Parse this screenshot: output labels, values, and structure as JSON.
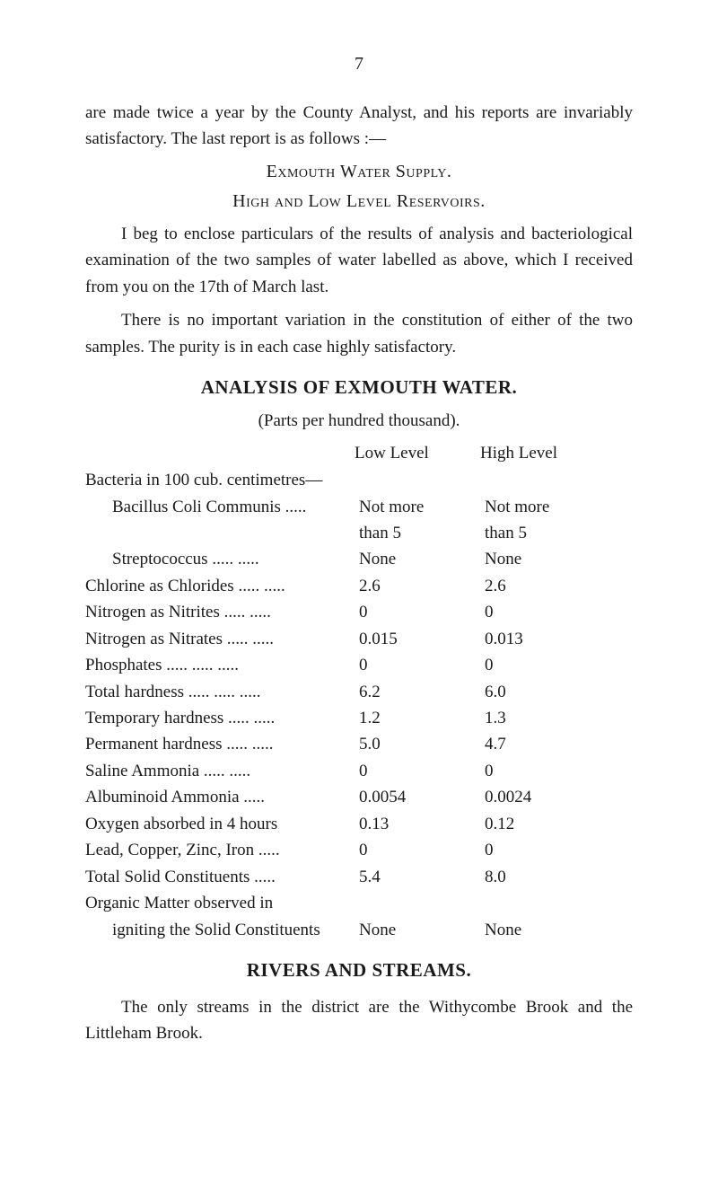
{
  "pageNumber": "7",
  "para1": "are made twice a year by the County Analyst, and his reports are invariably satisfactory. The last report is as follows :—",
  "line_exmouth": "Exmouth Water Supply.",
  "line_high_low": "High and Low Level Reservoirs.",
  "para2": "I beg to enclose particulars of the results of analysis and bacteriological examination of the two samples of water labelled as above, which I received from you on the 17th of March last.",
  "para3": "There is no important variation in the constitution of either of the two samples. The purity is in each case highly satisfactory.",
  "heading_analysis": "ANALYSIS OF EXMOUTH WATER.",
  "sub_parts": "(Parts per hundred thousand).",
  "col_low": "Low Level",
  "col_high": "High Level",
  "bacteria_line": "Bacteria in 100 cub. centimetres—",
  "rows": [
    {
      "label": "Bacillus Coli Communis  .....",
      "low": "Not more",
      "high": "Not more",
      "indent": true
    },
    {
      "label": "",
      "low": "than 5",
      "high": "than 5",
      "indent": true
    },
    {
      "label": "Streptococcus       .....   .....",
      "low": "None",
      "high": "None",
      "indent": true
    },
    {
      "label": "Chlorine as Chlorides  .....   .....",
      "low": "2.6",
      "high": "2.6",
      "indent": false
    },
    {
      "label": "Nitrogen as Nitrites   .....   .....",
      "low": "0",
      "high": "0",
      "indent": false
    },
    {
      "label": "Nitrogen as Nitrates   .....   .....",
      "low": "0.015",
      "high": "0.013",
      "indent": false
    },
    {
      "label": "Phosphates      .....   .....   .....",
      "low": "0",
      "high": "0",
      "indent": false
    },
    {
      "label": "Total hardness .....    .....   .....",
      "low": "6.2",
      "high": "6.0",
      "indent": false
    },
    {
      "label": "Temporary hardness   .....   .....",
      "low": "1.2",
      "high": "1.3",
      "indent": false
    },
    {
      "label": "Permanent hardness   .....   .....",
      "low": "5.0",
      "high": "4.7",
      "indent": false
    },
    {
      "label": "Saline Ammonia      .....   .....",
      "low": "0",
      "high": "0",
      "indent": false
    },
    {
      "label": "Albuminoid Ammonia      .....",
      "low": "0.0054",
      "high": "0.0024",
      "indent": false
    },
    {
      "label": "Oxygen   absorbed   in   4   hours",
      "low": "0.13",
      "high": "0.12",
      "indent": false
    },
    {
      "label": "Lead, Copper, Zinc, Iron     .....",
      "low": "0",
      "high": "0",
      "indent": false
    },
    {
      "label": "Total Solid Constituents     .....",
      "low": "5.4",
      "high": "8.0",
      "indent": false
    },
    {
      "label": "Organic   Matter   observed   in",
      "low": "",
      "high": "",
      "indent": false
    },
    {
      "label": "igniting the Solid Constituents",
      "low": "None",
      "high": "None",
      "indent": true
    }
  ],
  "heading_rivers": "RIVERS AND STREAMS.",
  "para4": "The only streams in the district are the Withycombe Brook and the Littleham Brook."
}
